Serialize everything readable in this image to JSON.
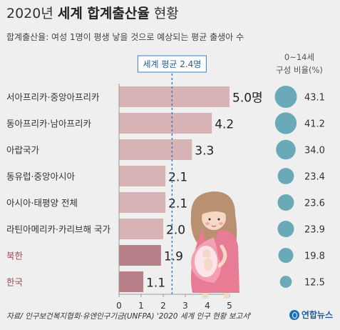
{
  "title_light": "2020년",
  "title_bold": "세계 합계출산율",
  "title_tail": "현황",
  "subtitle": "합계출산율: 여성 1명이 평생 낳을 것으로 예상되는 평균 출생아 수",
  "right_header_line1": "0~14세",
  "right_header_line2": "구성 비율(%)",
  "source": "자료/ 인구보건복지협회·유엔인구기금(UNFPA) '2020 세계 인구 현황 보고서'",
  "logo_text": "연합뉴스",
  "colors": {
    "bar": "#d8b3b5",
    "bar_highlight": "#b9808a",
    "label_highlight": "#9a4a5a",
    "circle": "#6aaab8",
    "average_line": "#3d7fc1"
  },
  "chart_data": {
    "type": "bar",
    "orientation": "horizontal",
    "categories": [
      "서아프리카·중앙아프리카",
      "동아프리카·남아프리카",
      "아랍국가",
      "동유럽·중앙아시아",
      "아시아·태평양 전체",
      "라틴아메리카·카리브해 국가",
      "북한",
      "한국"
    ],
    "values": [
      5.0,
      4.2,
      3.3,
      2.1,
      2.1,
      2.0,
      1.9,
      1.1
    ],
    "value_labels": [
      "5.0명",
      "4.2",
      "3.3",
      "2.1",
      "2.1",
      "2.0",
      "1.9",
      "1.1"
    ],
    "highlighted": [
      false,
      false,
      false,
      false,
      false,
      false,
      true,
      true
    ],
    "xticks": [
      "0",
      "1",
      "2",
      "3",
      "4",
      "5"
    ],
    "xlim": [
      0,
      5
    ],
    "average": 2.4,
    "average_label": "세계 평균 2.4명",
    "child_share_percent": [
      43.1,
      41.2,
      34.0,
      23.4,
      23.6,
      23.9,
      19.8,
      12.5
    ],
    "child_share_labels": [
      "43.1",
      "41.2",
      "34.0",
      "23.4",
      "23.6",
      "23.9",
      "19.8",
      "12.5"
    ]
  }
}
